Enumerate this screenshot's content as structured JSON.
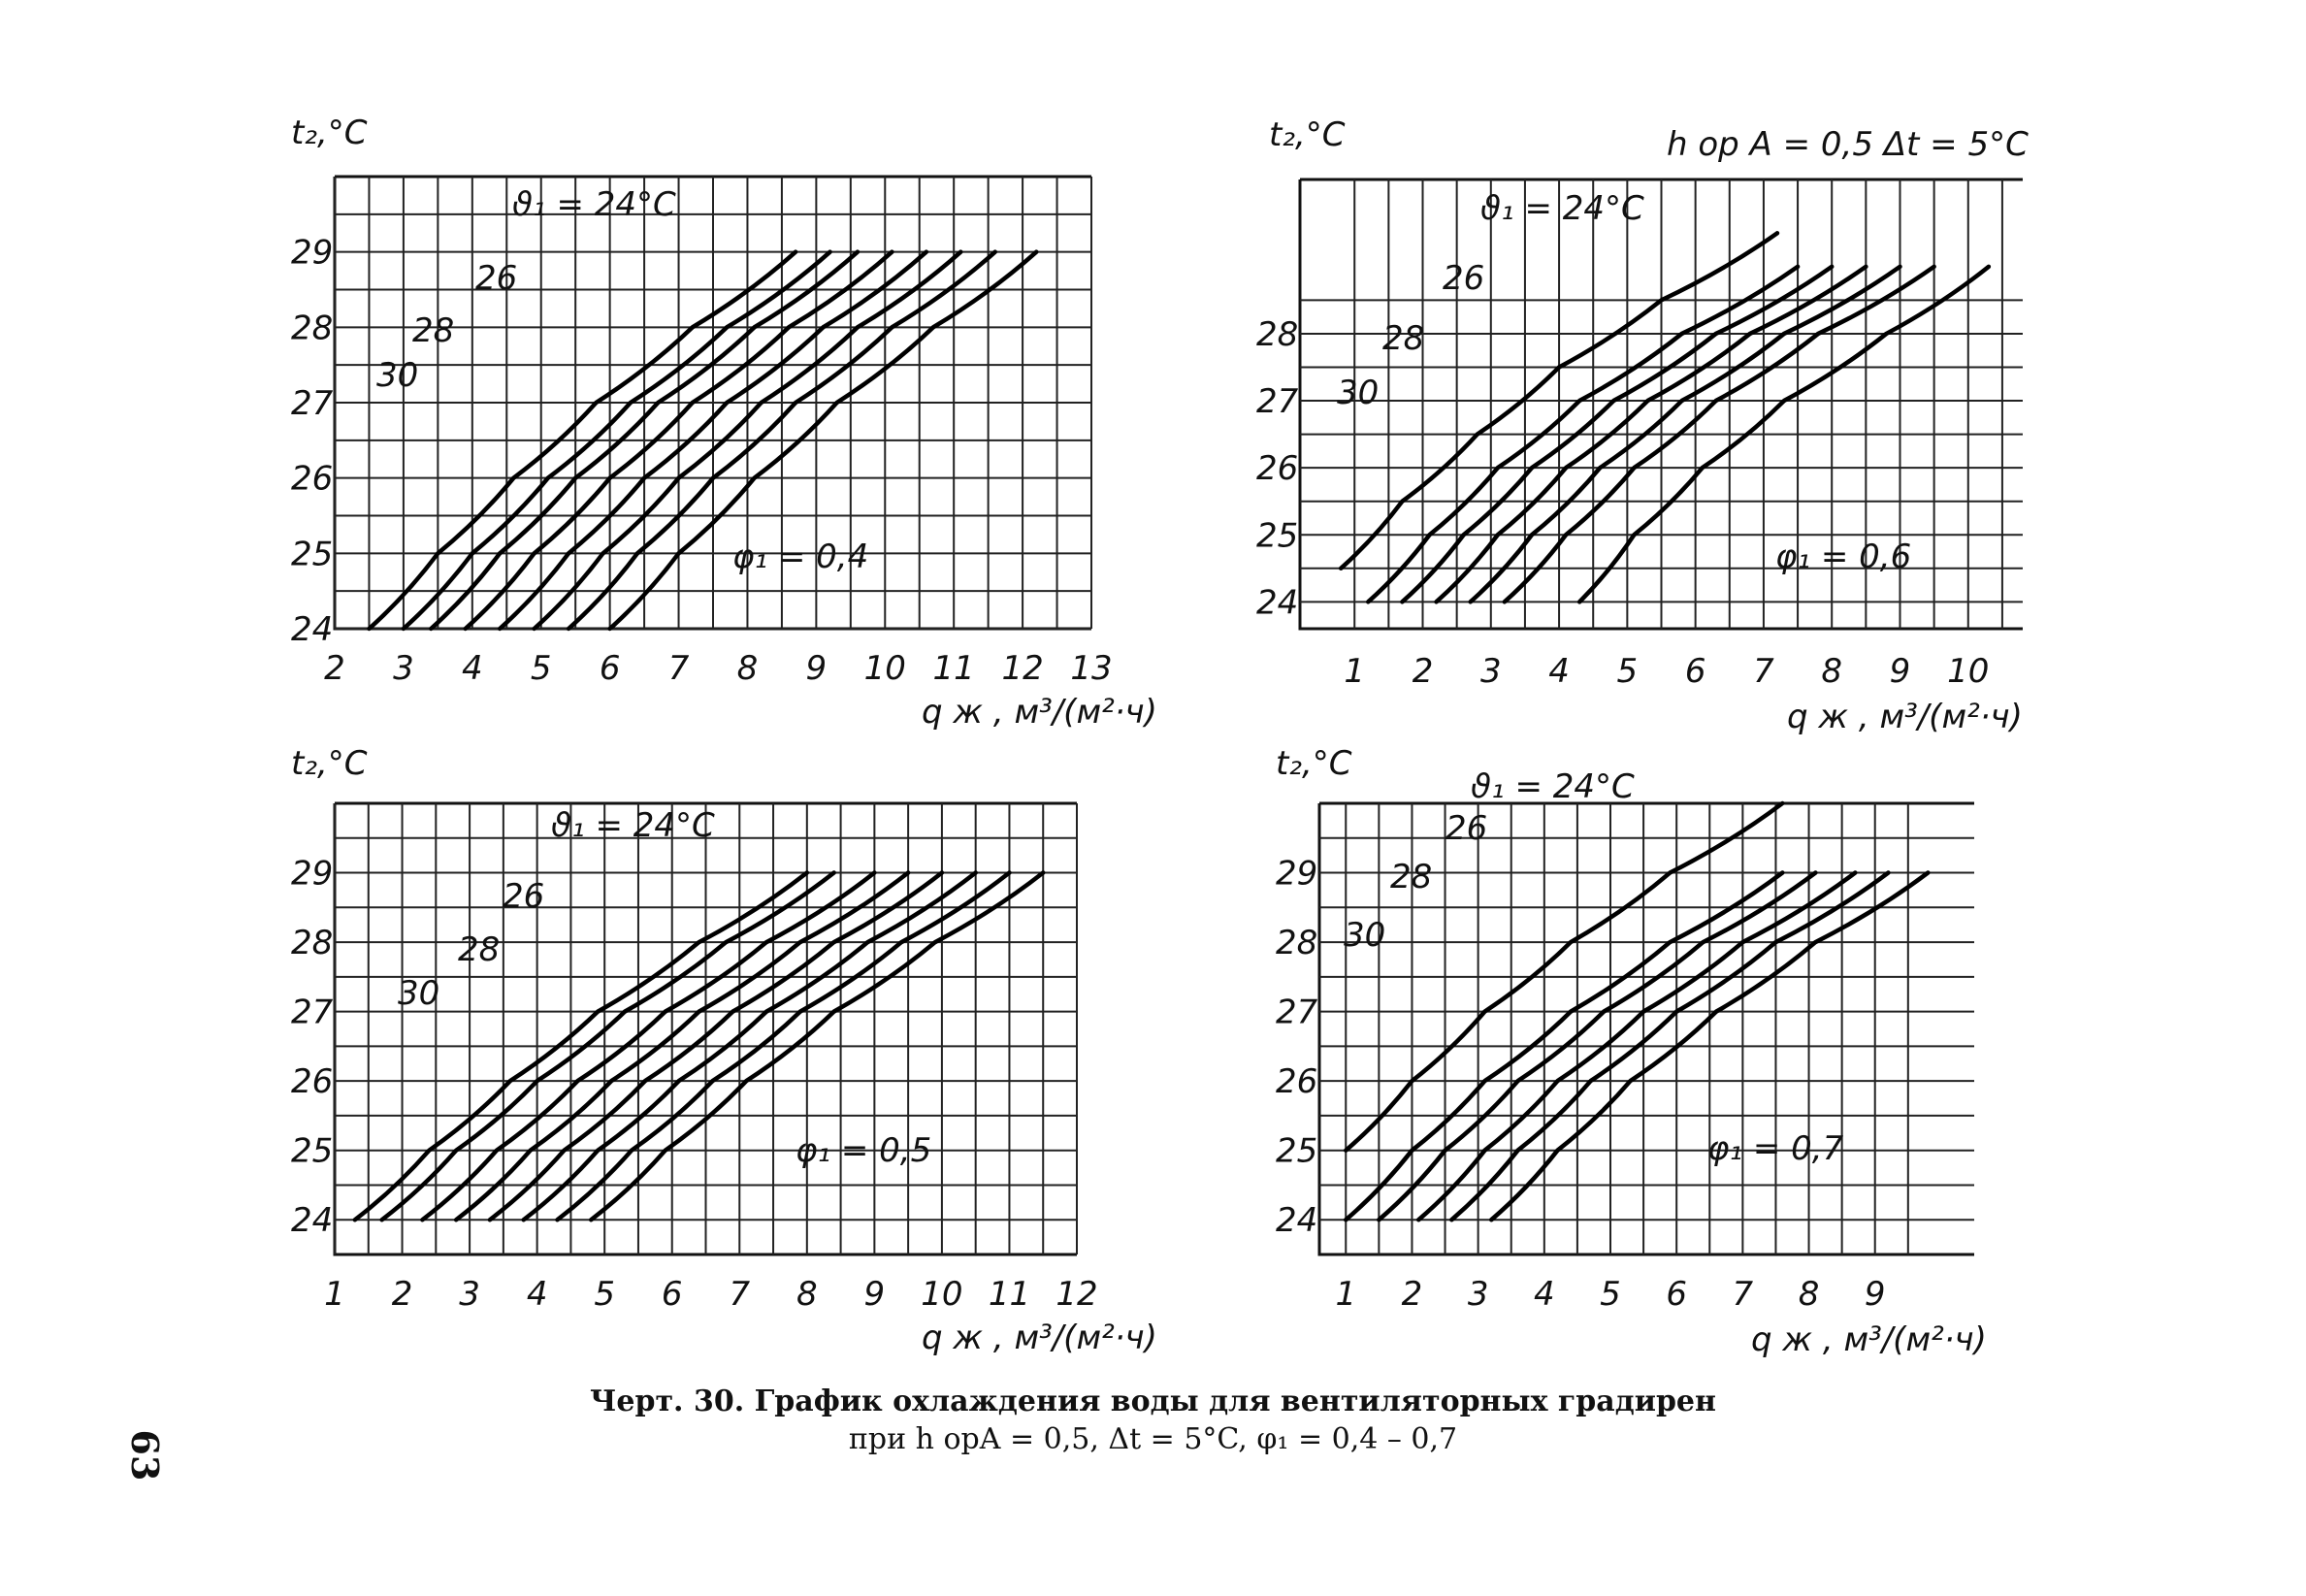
{
  "chart_data": [
    {
      "type": "line",
      "panel": "top-left",
      "ylabel": "t₂,°C",
      "xlabel": "q ж , м³/(м²·ч)",
      "xlim": [
        2,
        13
      ],
      "ylim": [
        24,
        30
      ],
      "xticks": [
        "2",
        "3",
        "4",
        "5",
        "6",
        "7",
        "8",
        "9",
        "10",
        "11",
        "12",
        "13"
      ],
      "yticks": [
        "24",
        "25",
        "26",
        "27",
        "28",
        "29"
      ],
      "phi_label": "φ₁ = 0,4",
      "theta_label": "ϑ₁ = 24°C",
      "curve_labels": [
        "26",
        "28",
        "30"
      ],
      "series": [
        {
          "x": [
            2.5,
            3.5,
            4.6,
            5.8,
            7.2,
            8.7
          ],
          "y": [
            24,
            25,
            26,
            27,
            28,
            29
          ]
        },
        {
          "x": [
            3.0,
            4.0,
            5.1,
            6.3,
            7.7,
            9.2
          ],
          "y": [
            24,
            25,
            26,
            27,
            28,
            29
          ]
        },
        {
          "x": [
            3.4,
            4.4,
            5.5,
            6.7,
            8.1,
            9.6
          ],
          "y": [
            24,
            25,
            26,
            27,
            28,
            29
          ]
        },
        {
          "x": [
            3.9,
            4.9,
            6.0,
            7.2,
            8.6,
            10.1
          ],
          "y": [
            24,
            25,
            26,
            27,
            28,
            29
          ]
        },
        {
          "x": [
            4.4,
            5.4,
            6.5,
            7.7,
            9.1,
            10.6
          ],
          "y": [
            24,
            25,
            26,
            27,
            28,
            29
          ]
        },
        {
          "x": [
            4.9,
            5.9,
            7.0,
            8.2,
            9.6,
            11.1
          ],
          "y": [
            24,
            25,
            26,
            27,
            28,
            29
          ]
        },
        {
          "x": [
            5.4,
            6.4,
            7.5,
            8.7,
            10.1,
            11.6
          ],
          "y": [
            24,
            25,
            26,
            27,
            28,
            29
          ]
        },
        {
          "x": [
            6.0,
            7.0,
            8.1,
            9.3,
            10.7,
            12.2
          ],
          "y": [
            24,
            25,
            26,
            27,
            28,
            29
          ]
        }
      ]
    },
    {
      "type": "line",
      "panel": "top-right",
      "ylabel": "t₂,°C",
      "xlabel": "q ж , м³/(м²·ч)",
      "header_text": "h оp A = 0,5     Δt = 5°C",
      "xlim": [
        0.2,
        10.8
      ],
      "ylim": [
        23.6,
        30.3
      ],
      "xticks": [
        "1",
        "2",
        "3",
        "4",
        "5",
        "6",
        "7",
        "8",
        "9",
        "10"
      ],
      "yticks": [
        "24",
        "25",
        "26",
        "27",
        "28"
      ],
      "phi_label": "φ₁ = 0,6",
      "theta_label": "ϑ₁ = 24°C",
      "curve_labels": [
        "26",
        "28",
        "30"
      ],
      "series": [
        {
          "x": [
            0.8,
            1.7,
            2.8,
            4.0,
            5.5,
            7.2
          ],
          "y": [
            24.5,
            25.5,
            26.5,
            27.5,
            28.5,
            29.5
          ]
        },
        {
          "x": [
            1.2,
            2.1,
            3.1,
            4.3,
            5.8,
            7.5
          ],
          "y": [
            24,
            25,
            26,
            27,
            28,
            29
          ]
        },
        {
          "x": [
            1.7,
            2.6,
            3.6,
            4.8,
            6.3,
            8.0
          ],
          "y": [
            24,
            25,
            26,
            27,
            28,
            29
          ]
        },
        {
          "x": [
            2.2,
            3.1,
            4.1,
            5.3,
            6.8,
            8.5
          ],
          "y": [
            24,
            25,
            26,
            27,
            28,
            29
          ]
        },
        {
          "x": [
            2.7,
            3.6,
            4.6,
            5.8,
            7.3,
            9.0
          ],
          "y": [
            24,
            25,
            26,
            27,
            28,
            29
          ]
        },
        {
          "x": [
            3.2,
            4.1,
            5.1,
            6.3,
            7.8,
            9.5
          ],
          "y": [
            24,
            25,
            26,
            27,
            28,
            29
          ]
        },
        {
          "x": [
            4.3,
            5.1,
            6.1,
            7.3,
            8.8,
            10.3
          ],
          "y": [
            24,
            25,
            26,
            27,
            28,
            29
          ]
        }
      ]
    },
    {
      "type": "line",
      "panel": "bottom-left",
      "ylabel": "t₂,°C",
      "xlabel": "q ж , м³/(м²·ч)",
      "xlim": [
        1,
        12
      ],
      "ylim": [
        23.5,
        30
      ],
      "xticks": [
        "1",
        "2",
        "3",
        "4",
        "5",
        "6",
        "7",
        "8",
        "9",
        "10",
        "11",
        "12"
      ],
      "yticks": [
        "24",
        "25",
        "26",
        "27",
        "28",
        "29"
      ],
      "phi_label": "φ₁ = 0,5",
      "theta_label": "ϑ₁ = 24°C",
      "curve_labels": [
        "26",
        "28",
        "30"
      ],
      "series": [
        {
          "x": [
            1.3,
            2.4,
            3.6,
            4.9,
            6.4,
            8.0
          ],
          "y": [
            24,
            25,
            26,
            27,
            28,
            29
          ]
        },
        {
          "x": [
            1.7,
            2.8,
            4.0,
            5.3,
            6.8,
            8.4
          ],
          "y": [
            24,
            25,
            26,
            27,
            28,
            29
          ]
        },
        {
          "x": [
            2.3,
            3.4,
            4.6,
            5.9,
            7.4,
            9.0
          ],
          "y": [
            24,
            25,
            26,
            27,
            28,
            29
          ]
        },
        {
          "x": [
            2.8,
            3.9,
            5.1,
            6.4,
            7.9,
            9.5
          ],
          "y": [
            24,
            25,
            26,
            27,
            28,
            29
          ]
        },
        {
          "x": [
            3.3,
            4.4,
            5.6,
            6.9,
            8.4,
            10.0
          ],
          "y": [
            24,
            25,
            26,
            27,
            28,
            29
          ]
        },
        {
          "x": [
            3.8,
            4.9,
            6.1,
            7.4,
            8.9,
            10.5
          ],
          "y": [
            24,
            25,
            26,
            27,
            28,
            29
          ]
        },
        {
          "x": [
            4.3,
            5.4,
            6.6,
            7.9,
            9.4,
            11.0
          ],
          "y": [
            24,
            25,
            26,
            27,
            28,
            29
          ]
        },
        {
          "x": [
            4.8,
            5.9,
            7.1,
            8.4,
            9.9,
            11.5
          ],
          "y": [
            24,
            25,
            26,
            27,
            28,
            29
          ]
        }
      ]
    },
    {
      "type": "line",
      "panel": "bottom-right",
      "ylabel": "t₂,°C",
      "xlabel": "q ж , м³/(м²·ч)",
      "xlim": [
        0.6,
        10.5
      ],
      "ylim": [
        23.5,
        30
      ],
      "xticks": [
        "1",
        "2",
        "3",
        "4",
        "5",
        "6",
        "7",
        "8",
        "9"
      ],
      "yticks": [
        "24",
        "25",
        "26",
        "27",
        "28",
        "29"
      ],
      "phi_label": "φ₁ = 0,7",
      "theta_label": "ϑ₁ = 24°C",
      "curve_labels": [
        "26",
        "28",
        "30"
      ],
      "series": [
        {
          "x": [
            1.0,
            2.0,
            3.1,
            4.4,
            5.9,
            7.6
          ],
          "y": [
            25,
            26,
            27,
            28,
            29,
            30
          ]
        },
        {
          "x": [
            1.0,
            2.0,
            3.1,
            4.4,
            5.9,
            7.6
          ],
          "y": [
            24,
            25,
            26,
            27,
            28,
            29
          ]
        },
        {
          "x": [
            1.5,
            2.5,
            3.6,
            4.9,
            6.4,
            8.1
          ],
          "y": [
            24,
            25,
            26,
            27,
            28,
            29
          ]
        },
        {
          "x": [
            2.1,
            3.1,
            4.2,
            5.5,
            7.0,
            8.7
          ],
          "y": [
            24,
            25,
            26,
            27,
            28,
            29
          ]
        },
        {
          "x": [
            2.6,
            3.6,
            4.7,
            6.0,
            7.5,
            9.2
          ],
          "y": [
            24,
            25,
            26,
            27,
            28,
            29
          ]
        },
        {
          "x": [
            3.2,
            4.2,
            5.3,
            6.6,
            8.1,
            9.8
          ],
          "y": [
            24,
            25,
            26,
            27,
            28,
            29
          ]
        }
      ]
    }
  ],
  "caption": {
    "line1": "Черт. 30. График охлаждения воды для вентиляторных градирен",
    "line2": "при h opA = 0,5,  Δt = 5°C, φ₁ = 0,4 – 0,7"
  },
  "page_number": "63"
}
